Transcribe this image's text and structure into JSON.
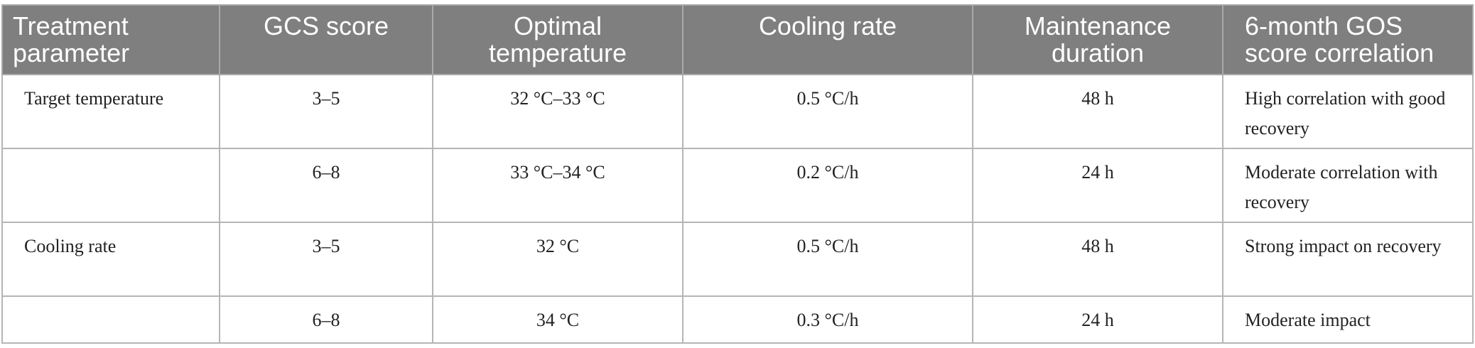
{
  "table": {
    "headers": [
      "Treatment parameter",
      "GCS score",
      "Optimal temperature",
      "Cooling rate",
      "Maintenance duration",
      "6-month GOS score correlation"
    ],
    "rows": [
      [
        "Target temperature",
        "3–5",
        "32 °C–33 °C",
        "0.5 °C/h",
        "48 h",
        "High correlation with good recovery"
      ],
      [
        "",
        "6–8",
        "33 °C–34 °C",
        "0.2 °C/h",
        "24 h",
        "Moderate correlation with recovery"
      ],
      [
        "Cooling rate",
        "3–5",
        "32 °C",
        "0.5 °C/h",
        "48 h",
        "Strong impact on recovery"
      ],
      [
        "",
        "6–8",
        "34 °C",
        "0.3 °C/h",
        "24 h",
        "Moderate impact"
      ]
    ]
  }
}
